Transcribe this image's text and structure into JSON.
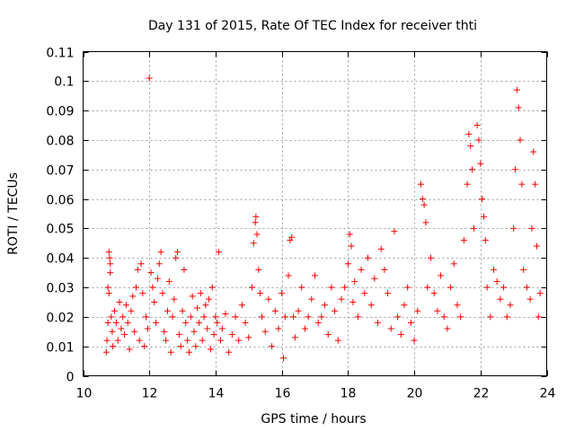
{
  "chart_data": {
    "type": "scatter",
    "title": "Day 131 of 2015, Rate Of TEC Index for receiver thti",
    "xlabel": "GPS time / hours",
    "ylabel": "ROTI / TECUs",
    "xlim": [
      10,
      24
    ],
    "ylim": [
      0,
      0.11
    ],
    "xticks": [
      10,
      12,
      14,
      16,
      18,
      20,
      22,
      24
    ],
    "yticks": [
      0,
      0.01,
      0.02,
      0.03,
      0.04,
      0.05,
      0.06,
      0.07,
      0.08,
      0.09,
      0.1,
      0.11
    ],
    "ytick_labels": [
      "0",
      "0.01",
      "0.02",
      "0.03",
      "0.04",
      "0.05",
      "0.06",
      "0.07",
      "0.08",
      "0.09",
      "0.1",
      "0.11"
    ],
    "grid": true,
    "marker": "+",
    "series_color": "#ff0000",
    "series": [
      {
        "name": "ROTI",
        "points": [
          [
            10.7,
            0.008
          ],
          [
            10.72,
            0.012
          ],
          [
            10.75,
            0.018
          ],
          [
            10.75,
            0.03
          ],
          [
            10.78,
            0.028
          ],
          [
            10.78,
            0.042
          ],
          [
            10.8,
            0.04
          ],
          [
            10.82,
            0.038
          ],
          [
            10.82,
            0.035
          ],
          [
            10.85,
            0.02
          ],
          [
            10.88,
            0.015
          ],
          [
            10.9,
            0.01
          ],
          [
            10.95,
            0.022
          ],
          [
            11.0,
            0.018
          ],
          [
            11.05,
            0.012
          ],
          [
            11.1,
            0.025
          ],
          [
            11.15,
            0.016
          ],
          [
            11.2,
            0.02
          ],
          [
            11.25,
            0.014
          ],
          [
            11.3,
            0.024
          ],
          [
            11.35,
            0.018
          ],
          [
            11.4,
            0.009
          ],
          [
            11.45,
            0.022
          ],
          [
            11.5,
            0.027
          ],
          [
            11.55,
            0.015
          ],
          [
            11.6,
            0.03
          ],
          [
            11.65,
            0.036
          ],
          [
            11.7,
            0.012
          ],
          [
            11.75,
            0.038
          ],
          [
            11.8,
            0.028
          ],
          [
            11.85,
            0.01
          ],
          [
            11.9,
            0.02
          ],
          [
            11.95,
            0.016
          ],
          [
            12.0,
            0.101
          ],
          [
            12.05,
            0.035
          ],
          [
            12.1,
            0.03
          ],
          [
            12.15,
            0.025
          ],
          [
            12.2,
            0.018
          ],
          [
            12.25,
            0.033
          ],
          [
            12.3,
            0.038
          ],
          [
            12.35,
            0.042
          ],
          [
            12.4,
            0.028
          ],
          [
            12.45,
            0.015
          ],
          [
            12.5,
            0.012
          ],
          [
            12.55,
            0.022
          ],
          [
            12.6,
            0.032
          ],
          [
            12.65,
            0.008
          ],
          [
            12.7,
            0.02
          ],
          [
            12.75,
            0.026
          ],
          [
            12.8,
            0.04
          ],
          [
            12.85,
            0.042
          ],
          [
            12.9,
            0.014
          ],
          [
            12.95,
            0.01
          ],
          [
            13.0,
            0.022
          ],
          [
            13.05,
            0.036
          ],
          [
            13.1,
            0.018
          ],
          [
            13.15,
            0.012
          ],
          [
            13.2,
            0.008
          ],
          [
            13.25,
            0.02
          ],
          [
            13.3,
            0.027
          ],
          [
            13.35,
            0.015
          ],
          [
            13.4,
            0.01
          ],
          [
            13.45,
            0.023
          ],
          [
            13.5,
            0.018
          ],
          [
            13.55,
            0.028
          ],
          [
            13.6,
            0.012
          ],
          [
            13.65,
            0.02
          ],
          [
            13.7,
            0.024
          ],
          [
            13.75,
            0.016
          ],
          [
            13.8,
            0.026
          ],
          [
            13.85,
            0.009
          ],
          [
            13.9,
            0.03
          ],
          [
            13.95,
            0.014
          ],
          [
            14.0,
            0.02
          ],
          [
            14.05,
            0.018
          ],
          [
            14.1,
            0.042
          ],
          [
            14.15,
            0.012
          ],
          [
            14.2,
            0.016
          ],
          [
            14.3,
            0.021
          ],
          [
            14.4,
            0.008
          ],
          [
            14.5,
            0.014
          ],
          [
            14.6,
            0.02
          ],
          [
            14.7,
            0.012
          ],
          [
            14.8,
            0.024
          ],
          [
            14.9,
            0.018
          ],
          [
            15.0,
            0.013
          ],
          [
            15.1,
            0.03
          ],
          [
            15.15,
            0.045
          ],
          [
            15.2,
            0.052
          ],
          [
            15.22,
            0.054
          ],
          [
            15.25,
            0.048
          ],
          [
            15.3,
            0.036
          ],
          [
            15.35,
            0.028
          ],
          [
            15.4,
            0.02
          ],
          [
            15.5,
            0.015
          ],
          [
            15.6,
            0.026
          ],
          [
            15.7,
            0.01
          ],
          [
            15.8,
            0.022
          ],
          [
            15.9,
            0.016
          ],
          [
            16.0,
            0.028
          ],
          [
            16.05,
            0.006
          ],
          [
            16.1,
            0.02
          ],
          [
            16.2,
            0.034
          ],
          [
            16.25,
            0.046
          ],
          [
            16.3,
            0.047
          ],
          [
            16.35,
            0.02
          ],
          [
            16.4,
            0.013
          ],
          [
            16.5,
            0.022
          ],
          [
            16.6,
            0.03
          ],
          [
            16.7,
            0.016
          ],
          [
            16.8,
            0.02
          ],
          [
            16.9,
            0.026
          ],
          [
            17.0,
            0.034
          ],
          [
            17.1,
            0.018
          ],
          [
            17.2,
            0.02
          ],
          [
            17.3,
            0.024
          ],
          [
            17.4,
            0.014
          ],
          [
            17.5,
            0.03
          ],
          [
            17.6,
            0.022
          ],
          [
            17.7,
            0.012
          ],
          [
            17.8,
            0.026
          ],
          [
            17.9,
            0.03
          ],
          [
            18.0,
            0.038
          ],
          [
            18.05,
            0.048
          ],
          [
            18.1,
            0.044
          ],
          [
            18.15,
            0.025
          ],
          [
            18.2,
            0.032
          ],
          [
            18.3,
            0.02
          ],
          [
            18.4,
            0.036
          ],
          [
            18.5,
            0.028
          ],
          [
            18.6,
            0.04
          ],
          [
            18.7,
            0.024
          ],
          [
            18.8,
            0.033
          ],
          [
            18.9,
            0.018
          ],
          [
            19.0,
            0.043
          ],
          [
            19.1,
            0.036
          ],
          [
            19.2,
            0.028
          ],
          [
            19.3,
            0.016
          ],
          [
            19.4,
            0.049
          ],
          [
            19.5,
            0.02
          ],
          [
            19.6,
            0.014
          ],
          [
            19.7,
            0.024
          ],
          [
            19.8,
            0.03
          ],
          [
            19.9,
            0.018
          ],
          [
            20.0,
            0.012
          ],
          [
            20.1,
            0.022
          ],
          [
            20.2,
            0.065
          ],
          [
            20.25,
            0.06
          ],
          [
            20.3,
            0.058
          ],
          [
            20.35,
            0.052
          ],
          [
            20.4,
            0.03
          ],
          [
            20.5,
            0.04
          ],
          [
            20.6,
            0.028
          ],
          [
            20.7,
            0.022
          ],
          [
            20.8,
            0.034
          ],
          [
            20.9,
            0.02
          ],
          [
            21.0,
            0.016
          ],
          [
            21.1,
            0.03
          ],
          [
            21.2,
            0.038
          ],
          [
            21.3,
            0.024
          ],
          [
            21.4,
            0.02
          ],
          [
            21.5,
            0.046
          ],
          [
            21.6,
            0.065
          ],
          [
            21.65,
            0.082
          ],
          [
            21.7,
            0.078
          ],
          [
            21.75,
            0.07
          ],
          [
            21.8,
            0.05
          ],
          [
            21.9,
            0.085
          ],
          [
            21.95,
            0.08
          ],
          [
            22.0,
            0.072
          ],
          [
            22.05,
            0.06
          ],
          [
            22.1,
            0.054
          ],
          [
            22.15,
            0.046
          ],
          [
            22.2,
            0.03
          ],
          [
            22.3,
            0.02
          ],
          [
            22.4,
            0.036
          ],
          [
            22.5,
            0.032
          ],
          [
            22.6,
            0.026
          ],
          [
            22.7,
            0.03
          ],
          [
            22.8,
            0.02
          ],
          [
            22.9,
            0.024
          ],
          [
            23.0,
            0.05
          ],
          [
            23.05,
            0.07
          ],
          [
            23.1,
            0.097
          ],
          [
            23.15,
            0.091
          ],
          [
            23.2,
            0.08
          ],
          [
            23.25,
            0.065
          ],
          [
            23.3,
            0.036
          ],
          [
            23.4,
            0.03
          ],
          [
            23.5,
            0.026
          ],
          [
            23.55,
            0.05
          ],
          [
            23.6,
            0.076
          ],
          [
            23.65,
            0.065
          ],
          [
            23.7,
            0.044
          ],
          [
            23.75,
            0.02
          ],
          [
            23.8,
            0.028
          ]
        ]
      }
    ]
  }
}
